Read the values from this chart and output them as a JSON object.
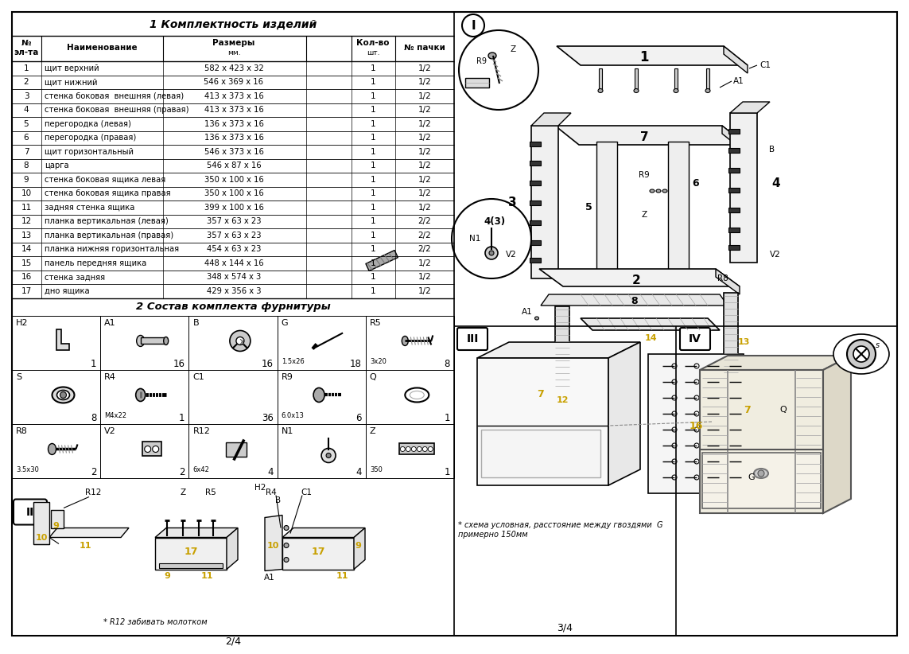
{
  "page_bg": "#ffffff",
  "title1": "1 Комплектность изделий",
  "title2": "2 Состав комплекта фурнитуры",
  "table_rows": [
    [
      "1",
      "щит верхний",
      "582 х 423 х 32",
      "1",
      "1/2"
    ],
    [
      "2",
      "щит нижний",
      "546 х 369 х 16",
      "1",
      "1/2"
    ],
    [
      "3",
      "стенка боковая  внешняя (левая)",
      "413 х 373 х 16",
      "1",
      "1/2"
    ],
    [
      "4",
      "стенка боковая  внешняя (правая)",
      "413 х 373 х 16",
      "1",
      "1/2"
    ],
    [
      "5",
      "перегородка (левая)",
      "136 х 373 х 16",
      "1",
      "1/2"
    ],
    [
      "6",
      "перегородка (правая)",
      "136 х 373 х 16",
      "1",
      "1/2"
    ],
    [
      "7",
      "щит горизонтальный",
      "546 х 373 х 16",
      "1",
      "1/2"
    ],
    [
      "8",
      "царга",
      "546 х 87 х 16",
      "1",
      "1/2"
    ],
    [
      "9",
      "стенка боковая ящика левая",
      "350 х 100 х 16",
      "1",
      "1/2"
    ],
    [
      "10",
      "стенка боковая ящика правая",
      "350 х 100 х 16",
      "1",
      "1/2"
    ],
    [
      "11",
      "задняя стенка ящика",
      "399 х 100 х 16",
      "1",
      "1/2"
    ],
    [
      "12",
      "планка вертикальная (левая)",
      "357 х 63 х 23",
      "1",
      "2/2"
    ],
    [
      "13",
      "планка вертикальная (правая)",
      "357 х 63 х 23",
      "1",
      "2/2"
    ],
    [
      "14",
      "планка нижняя горизонтальная",
      "454 х 63 х 23",
      "1",
      "2/2"
    ],
    [
      "15",
      "панель передняя ящика",
      "448 х 144 х 16",
      "1",
      "1/2"
    ],
    [
      "16",
      "стенка задняя",
      "348 х 574 х 3",
      "1",
      "1/2"
    ],
    [
      "17",
      "дно ящика",
      "429 х 356 х 3",
      "1",
      "1/2"
    ]
  ],
  "hardware": [
    {
      "code": "H2",
      "qty": "1",
      "sub": ""
    },
    {
      "code": "A1",
      "qty": "16",
      "sub": ""
    },
    {
      "code": "B",
      "qty": "16",
      "sub": ""
    },
    {
      "code": "G",
      "qty": "18",
      "sub": "1.5x26"
    },
    {
      "code": "R5",
      "qty": "8",
      "sub": "3x20"
    },
    {
      "code": "S",
      "qty": "8",
      "sub": ""
    },
    {
      "code": "R4",
      "qty": "1",
      "sub": "M4x22"
    },
    {
      "code": "C1",
      "qty": "36",
      "sub": ""
    },
    {
      "code": "R9",
      "qty": "6",
      "sub": "6.0x13"
    },
    {
      "code": "Q",
      "qty": "1",
      "sub": ""
    },
    {
      "code": "R8",
      "qty": "2",
      "sub": "3.5x30"
    },
    {
      "code": "V2",
      "qty": "2",
      "sub": ""
    },
    {
      "code": "R12",
      "qty": "4",
      "sub": "6x42"
    },
    {
      "code": "N1",
      "qty": "4",
      "sub": ""
    },
    {
      "code": "Z",
      "qty": "1",
      "sub": "350"
    }
  ],
  "note_II": "* R12 забивать молотком",
  "note_III": "* схема условная, расстояние между гвоздями  G\nпримерно 150мм",
  "page_left": "2/4",
  "page_right": "3/4",
  "lc": "#000000",
  "tc": "#000000",
  "amber": "#c8a000"
}
